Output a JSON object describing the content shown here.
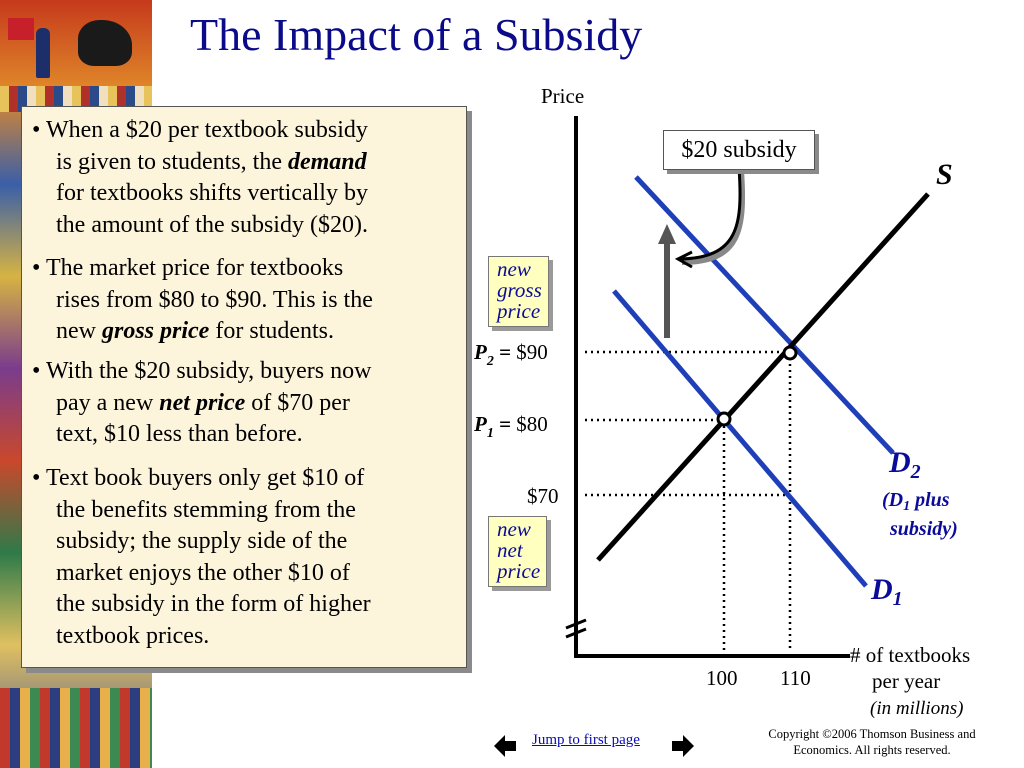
{
  "title": "The Impact of a Subsidy",
  "bullets": [
    {
      "lines": [
        "• When a $20 per textbook subsidy",
        "is given to students, the ",
        "for textbooks shifts vertically by",
        "the amount of the subsidy ($20)."
      ],
      "emph": "demand"
    },
    {
      "lines": [
        "• The market price for textbooks",
        "rises from $80 to $90. This is the",
        "new ",
        " for students."
      ],
      "emph": "gross price"
    },
    {
      "lines": [
        "• With the $20 subsidy, buyers now",
        "pay a new ",
        " of $70 per",
        "text, $10 less than before."
      ],
      "emph": "net price"
    },
    {
      "lines": [
        "• Text book buyers only get $10 of",
        "the benefits stemming from the",
        "subsidy; the supply side of the",
        "market enjoys the other $10 of",
        "the subsidy in the form of higher",
        "textbook prices."
      ]
    }
  ],
  "diagram": {
    "y_axis_label": "Price",
    "x_axis_label_lines": [
      "# of textbooks",
      "per year",
      "(in millions)"
    ],
    "subsidy_label": "$20 subsidy",
    "supply_label": "S",
    "d2_label": "D",
    "d2_sub": "2",
    "d2_note_lines": [
      "(D",
      "1",
      " plus",
      "subsidy)"
    ],
    "d1_label": "D",
    "d1_sub": "1",
    "p2": {
      "sym": "P",
      "sub": "2",
      "eq": " =",
      "value": "$90"
    },
    "p1": {
      "sym": "P",
      "sub": "1",
      "eq": " =",
      "value": "$80"
    },
    "p_net": "$70",
    "q1": "100",
    "q2": "110",
    "gross_callout": [
      "new",
      "gross",
      "price"
    ],
    "net_callout": [
      "new",
      "net",
      "price"
    ]
  },
  "nav": {
    "link": "Jump to first page"
  },
  "copyright_lines": [
    "Copyright ©2006  Thomson Business and",
    "Economics. All rights reserved."
  ]
}
